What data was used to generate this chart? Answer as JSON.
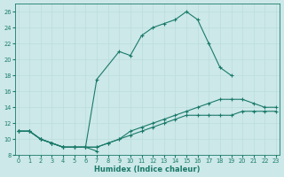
{
  "xlabel": "Humidex (Indice chaleur)",
  "bg_color": "#cce8e8",
  "line_color": "#1a7a6a",
  "grid_color": "#aacccc",
  "xlim": [
    -0.3,
    23.3
  ],
  "ylim": [
    8,
    27
  ],
  "xticks": [
    0,
    1,
    2,
    3,
    4,
    5,
    6,
    7,
    8,
    9,
    10,
    11,
    12,
    13,
    14,
    15,
    16,
    17,
    18,
    19,
    20,
    21,
    22,
    23
  ],
  "yticks": [
    8,
    10,
    12,
    14,
    16,
    18,
    20,
    22,
    24,
    26
  ],
  "lines": [
    {
      "x": [
        0,
        1,
        2,
        3,
        4,
        5,
        6,
        7
      ],
      "y": [
        11,
        11,
        10,
        9.5,
        9,
        9,
        9,
        8.5
      ]
    },
    {
      "x": [
        0,
        1,
        2,
        3,
        4,
        5,
        6,
        7,
        8,
        9,
        10,
        11,
        12,
        13,
        14,
        15,
        16,
        17,
        18,
        19,
        20,
        21,
        22,
        23
      ],
      "y": [
        11,
        11,
        10,
        9.5,
        9,
        9,
        9,
        9,
        9.5,
        10,
        10.5,
        11,
        11.5,
        12,
        12.5,
        13,
        13,
        13,
        13,
        13,
        13.5,
        13.5,
        13.5,
        13.5
      ]
    },
    {
      "x": [
        0,
        1,
        2,
        3,
        4,
        5,
        6,
        7,
        8,
        9,
        10,
        11,
        12,
        13,
        14,
        15,
        16,
        17,
        18,
        19,
        20,
        21,
        22,
        23
      ],
      "y": [
        11,
        11,
        10,
        9.5,
        9,
        9,
        9,
        9,
        9.5,
        10,
        11,
        11.5,
        12,
        12.5,
        13,
        13.5,
        14,
        14.5,
        15,
        15,
        15,
        14.5,
        14,
        14
      ]
    },
    {
      "x": [
        0,
        1,
        2,
        3,
        4,
        5,
        6,
        7,
        9,
        10,
        11,
        12,
        13,
        14,
        15,
        16,
        17,
        18,
        19
      ],
      "y": [
        11,
        11,
        10,
        9.5,
        9,
        9,
        9,
        17.5,
        21,
        20.5,
        23,
        24,
        24.5,
        25,
        26,
        25,
        22,
        19,
        18
      ]
    }
  ]
}
